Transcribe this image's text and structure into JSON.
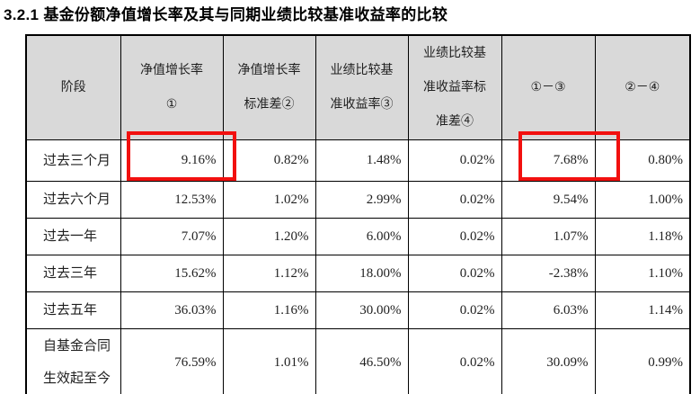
{
  "page": {
    "title": "3.2.1 基金份额净值增长率及其与同期业绩比较基准收益率的比较"
  },
  "colors": {
    "header_background": "#d9d9d9",
    "grid_border": "#000000",
    "highlight_red": "#f2100f",
    "text": "#1f1f1f"
  },
  "table": {
    "headers": [
      "阶段",
      "净值增长率\n①",
      "净值增长率\n标准差②",
      "业绩比较基\n准收益率③",
      "业绩比较基\n准收益率标\n准差④",
      "①－③",
      "②－④"
    ],
    "rows": [
      {
        "stage": "过去三个月",
        "values": [
          "9.16%",
          "0.82%",
          "1.48%",
          "0.02%",
          "7.68%",
          "0.80%"
        ]
      },
      {
        "stage": "过去六个月",
        "values": [
          "12.53%",
          "1.02%",
          "2.99%",
          "0.02%",
          "9.54%",
          "1.00%"
        ]
      },
      {
        "stage": "过去一年",
        "values": [
          "7.07%",
          "1.20%",
          "6.00%",
          "0.02%",
          "1.07%",
          "1.18%"
        ]
      },
      {
        "stage": "过去三年",
        "values": [
          "15.62%",
          "1.12%",
          "18.00%",
          "0.02%",
          "-2.38%",
          "1.10%"
        ]
      },
      {
        "stage": "过去五年",
        "values": [
          "36.03%",
          "1.16%",
          "30.00%",
          "0.02%",
          "6.03%",
          "1.14%"
        ]
      },
      {
        "stage": "自基金合同\n生效起至今",
        "values": [
          "76.59%",
          "1.01%",
          "46.50%",
          "0.02%",
          "30.09%",
          "0.99%"
        ]
      }
    ],
    "highlighted_cells": [
      {
        "row": "过去三个月",
        "column": "净值增长率①",
        "value": "9.16%"
      },
      {
        "row": "过去三个月",
        "column": "①－③",
        "value": "7.68%"
      }
    ]
  }
}
